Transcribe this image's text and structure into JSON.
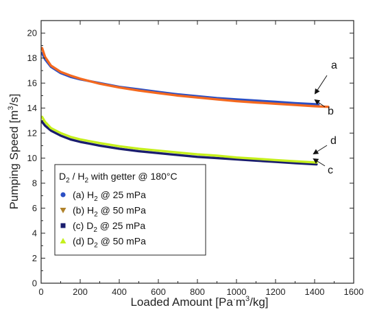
{
  "chart_data": {
    "type": "line",
    "xlabel_main": "Loaded Amount [Pa",
    "xlabel_dot": "·",
    "xlabel_rest": "m",
    "xlabel_sup": "3",
    "xlabel_end": "/kg]",
    "ylabel_main": "Pumping Speed [m",
    "ylabel_sup": "3",
    "ylabel_end": "/s]",
    "xlim": [
      0,
      1600
    ],
    "ylim": [
      0,
      21
    ],
    "x_ticks": [
      "0",
      "200",
      "400",
      "600",
      "800",
      "1000",
      "1200",
      "1400",
      "1600"
    ],
    "y_ticks": [
      "0",
      "2",
      "4",
      "6",
      "8",
      "10",
      "12",
      "14",
      "16",
      "18",
      "20"
    ],
    "legend": {
      "title_main": "D",
      "title_sub": "2",
      "title_mid": " / H",
      "title_sub2": "2",
      "title_end": " with getter @ 180°C",
      "placement": "center-left"
    },
    "series": [
      {
        "name": "(a) H2 @ 25 mPa",
        "label_prefix": "(a) H",
        "label_sub": "2",
        "label_suffix": " @ 25 mPa",
        "annotation": "a",
        "color": "#2b4fc4",
        "marker": "circle",
        "x": [
          5,
          20,
          50,
          100,
          150,
          200,
          300,
          400,
          500,
          600,
          700,
          800,
          900,
          1000,
          1100,
          1200,
          1300,
          1420
        ],
        "y": [
          18.4,
          17.9,
          17.3,
          16.8,
          16.5,
          16.3,
          16.0,
          15.7,
          15.5,
          15.3,
          15.1,
          14.95,
          14.8,
          14.7,
          14.6,
          14.5,
          14.4,
          14.3
        ]
      },
      {
        "name": "(b) H2 @ 50 mPa",
        "label_prefix": "(b) H",
        "label_sub": "2",
        "label_suffix": " @ 50 mPa",
        "annotation": "b",
        "color": "#f4691f",
        "marker": "triangle-down",
        "legend_color": "#b0822a",
        "x": [
          5,
          20,
          50,
          100,
          150,
          200,
          300,
          400,
          500,
          600,
          700,
          800,
          900,
          1000,
          1100,
          1200,
          1300,
          1400,
          1470
        ],
        "y": [
          18.8,
          18.1,
          17.4,
          16.9,
          16.6,
          16.35,
          15.95,
          15.65,
          15.4,
          15.2,
          15.0,
          14.85,
          14.7,
          14.55,
          14.45,
          14.35,
          14.25,
          14.15,
          14.1
        ]
      },
      {
        "name": "(c) D2 @ 25 mPa",
        "label_prefix": "(c) D",
        "label_sub": "2",
        "label_suffix": " @ 25 mPa",
        "annotation": "c",
        "color": "#1a1d6e",
        "marker": "square",
        "x": [
          5,
          20,
          50,
          100,
          150,
          200,
          300,
          400,
          500,
          600,
          700,
          800,
          900,
          1000,
          1100,
          1200,
          1300,
          1410
        ],
        "y": [
          12.9,
          12.6,
          12.2,
          11.8,
          11.5,
          11.3,
          11.0,
          10.75,
          10.55,
          10.4,
          10.25,
          10.1,
          10.0,
          9.9,
          9.8,
          9.7,
          9.6,
          9.5
        ]
      },
      {
        "name": "(d) D2 @ 50 mPa",
        "label_prefix": "(d) D",
        "label_sub": "2",
        "label_suffix": " @ 50 mPa",
        "annotation": "d",
        "color": "#c5ef1d",
        "marker": "triangle-up",
        "x": [
          5,
          20,
          50,
          100,
          150,
          200,
          300,
          400,
          500,
          600,
          700,
          800,
          900,
          1000,
          1100,
          1200,
          1300,
          1410
        ],
        "y": [
          13.3,
          12.9,
          12.4,
          12.0,
          11.7,
          11.5,
          11.2,
          10.95,
          10.75,
          10.6,
          10.45,
          10.3,
          10.2,
          10.05,
          9.95,
          9.85,
          9.75,
          9.65
        ]
      }
    ],
    "grid": false
  }
}
